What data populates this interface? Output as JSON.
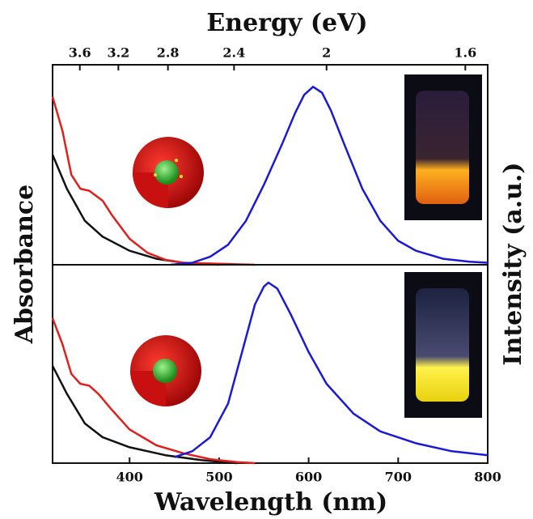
{
  "chart_data": [
    {
      "type": "line",
      "x2label": "Energy (eV)",
      "ylabel": "Absorbance",
      "y2label": "Intensity (a.u.)",
      "xlim": [
        314,
        800
      ],
      "ylim": [
        0,
        1
      ],
      "x2ticks": [
        3.6,
        3.2,
        2.8,
        2.4,
        2,
        1.6
      ],
      "series": [
        {
          "color": "#111111",
          "x": [
            314,
            330,
            350,
            370,
            400,
            430,
            460,
            500
          ],
          "values": [
            0.55,
            0.38,
            0.22,
            0.14,
            0.07,
            0.03,
            0.01,
            0
          ]
        },
        {
          "color": "#e0201c",
          "x": [
            314,
            325,
            335,
            345,
            355,
            370,
            380,
            400,
            420,
            440,
            460,
            500,
            540
          ],
          "values": [
            0.84,
            0.67,
            0.45,
            0.38,
            0.37,
            0.32,
            0.25,
            0.13,
            0.06,
            0.025,
            0.01,
            0.005,
            0
          ]
        },
        {
          "color": "#1a1ad6",
          "x": [
            446,
            470,
            490,
            510,
            530,
            550,
            570,
            585,
            595,
            605,
            615,
            625,
            640,
            660,
            680,
            700,
            720,
            750,
            780,
            800
          ],
          "values": [
            0,
            0.01,
            0.04,
            0.1,
            0.22,
            0.4,
            0.6,
            0.76,
            0.85,
            0.89,
            0.86,
            0.77,
            0.6,
            0.38,
            0.22,
            0.12,
            0.07,
            0.03,
            0.015,
            0.01
          ]
        }
      ]
    },
    {
      "type": "line",
      "xlabel": "Wavelength (nm)",
      "xlim": [
        314,
        800
      ],
      "ylim": [
        0,
        1
      ],
      "xticks": [
        400,
        500,
        600,
        700,
        800
      ],
      "series": [
        {
          "color": "#111111",
          "x": [
            314,
            330,
            350,
            370,
            400,
            440,
            480,
            520
          ],
          "values": [
            0.49,
            0.35,
            0.2,
            0.13,
            0.08,
            0.04,
            0.015,
            0
          ]
        },
        {
          "color": "#e0201c",
          "x": [
            314,
            325,
            335,
            345,
            355,
            365,
            380,
            400,
            430,
            460,
            490,
            520,
            540
          ],
          "values": [
            0.73,
            0.6,
            0.45,
            0.4,
            0.39,
            0.35,
            0.27,
            0.17,
            0.09,
            0.05,
            0.02,
            0.005,
            0
          ]
        },
        {
          "color": "#1a1ad6",
          "x": [
            450,
            470,
            490,
            510,
            525,
            540,
            550,
            555,
            565,
            580,
            600,
            620,
            650,
            680,
            720,
            760,
            800
          ],
          "values": [
            0.03,
            0.06,
            0.13,
            0.3,
            0.55,
            0.8,
            0.89,
            0.91,
            0.88,
            0.75,
            0.56,
            0.4,
            0.25,
            0.16,
            0.1,
            0.06,
            0.04
          ]
        }
      ]
    }
  ]
}
